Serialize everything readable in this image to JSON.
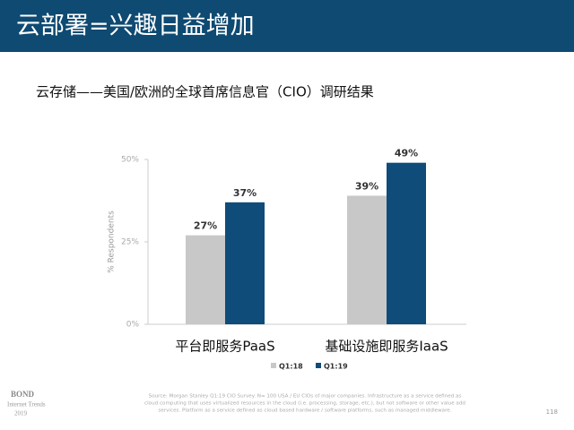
{
  "header": {
    "title": "云部署=兴趣日益增加"
  },
  "chart_data": {
    "type": "bar",
    "title": "云存储——美国/欧洲的全球首席信息官（CIO）调研结果",
    "y_label": "% Respondents",
    "categories": [
      "平台即服务PaaS",
      "基础设施即服务IaaS"
    ],
    "series": [
      {
        "name": "Q1:18",
        "color": "#c8c8c8",
        "values": [
          27,
          39
        ],
        "value_labels": [
          "27%",
          "39%"
        ]
      },
      {
        "name": "Q1:19",
        "color": "#0f4c7a",
        "values": [
          37,
          49
        ],
        "value_labels": [
          "37%",
          "49%"
        ]
      }
    ],
    "ylim": [
      0,
      50
    ],
    "yticks": [
      {
        "value": 0,
        "label": "0%"
      },
      {
        "value": 25,
        "label": "25%"
      },
      {
        "value": 50,
        "label": "50%"
      }
    ],
    "grid": false,
    "legend": "bottom"
  },
  "footer": {
    "brand": [
      "BOND",
      "Internet Trends",
      "2019"
    ],
    "source": [
      "Source: Morgan Stanley Q1:19 CIO Survey.  N= 100 USA / EU CIOs of major companies.  Infrastructure as a service defined as",
      "cloud computing that uses virtualized resources in the cloud (i.e. processing, storage, etc.), but not software or other value add",
      "services.  Platform as a service defined as cloud based hardware / software platforms, such as managed middleware."
    ],
    "page": "118"
  }
}
